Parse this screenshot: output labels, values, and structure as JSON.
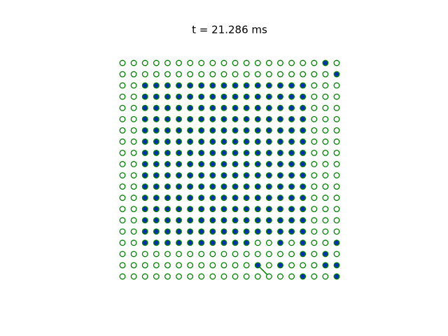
{
  "title": "t = 21.286 ms",
  "grid": [
    [
      0,
      0,
      0,
      0,
      0,
      0,
      0,
      0,
      0,
      0,
      0,
      0,
      0,
      0,
      0,
      0,
      0,
      0,
      1,
      0
    ],
    [
      0,
      0,
      0,
      0,
      0,
      0,
      0,
      0,
      0,
      0,
      0,
      0,
      0,
      0,
      0,
      0,
      0,
      0,
      0,
      1
    ],
    [
      0,
      0,
      1,
      1,
      1,
      1,
      1,
      1,
      1,
      1,
      1,
      1,
      1,
      1,
      1,
      1,
      1,
      0,
      0,
      0
    ],
    [
      0,
      0,
      1,
      1,
      1,
      1,
      1,
      1,
      1,
      1,
      1,
      1,
      1,
      1,
      1,
      1,
      1,
      0,
      0,
      0
    ],
    [
      0,
      0,
      1,
      1,
      1,
      1,
      1,
      1,
      1,
      1,
      1,
      1,
      1,
      1,
      1,
      1,
      1,
      0,
      0,
      0
    ],
    [
      0,
      0,
      1,
      1,
      1,
      1,
      1,
      1,
      1,
      1,
      1,
      1,
      1,
      1,
      1,
      1,
      1,
      0,
      0,
      0
    ],
    [
      0,
      0,
      1,
      1,
      1,
      1,
      1,
      1,
      1,
      1,
      1,
      1,
      1,
      1,
      1,
      1,
      1,
      0,
      0,
      0
    ],
    [
      0,
      0,
      1,
      1,
      1,
      1,
      1,
      1,
      1,
      1,
      1,
      1,
      1,
      1,
      1,
      1,
      1,
      0,
      0,
      0
    ],
    [
      0,
      0,
      1,
      1,
      1,
      1,
      1,
      1,
      1,
      1,
      1,
      1,
      1,
      1,
      1,
      1,
      1,
      0,
      0,
      0
    ],
    [
      0,
      0,
      1,
      1,
      1,
      1,
      1,
      1,
      1,
      1,
      1,
      1,
      1,
      1,
      1,
      1,
      1,
      0,
      0,
      0
    ],
    [
      0,
      0,
      1,
      1,
      1,
      1,
      1,
      1,
      1,
      1,
      1,
      1,
      1,
      1,
      1,
      1,
      1,
      0,
      0,
      0
    ],
    [
      0,
      0,
      1,
      1,
      1,
      1,
      1,
      1,
      1,
      1,
      1,
      1,
      1,
      1,
      1,
      1,
      1,
      0,
      0,
      0
    ],
    [
      0,
      0,
      1,
      1,
      1,
      1,
      1,
      1,
      1,
      1,
      1,
      1,
      1,
      1,
      1,
      1,
      1,
      0,
      0,
      0
    ],
    [
      0,
      0,
      1,
      1,
      1,
      1,
      1,
      1,
      1,
      1,
      1,
      1,
      1,
      1,
      1,
      1,
      1,
      0,
      0,
      0
    ],
    [
      0,
      0,
      1,
      1,
      1,
      1,
      1,
      1,
      1,
      1,
      1,
      1,
      1,
      1,
      1,
      1,
      1,
      0,
      0,
      0
    ],
    [
      0,
      0,
      1,
      1,
      1,
      1,
      1,
      1,
      1,
      1,
      1,
      1,
      1,
      1,
      1,
      1,
      1,
      0,
      0,
      0
    ],
    [
      0,
      0,
      1,
      1,
      1,
      1,
      1,
      1,
      1,
      1,
      1,
      1,
      0,
      0,
      1,
      0,
      1,
      0,
      0,
      1
    ],
    [
      0,
      0,
      0,
      0,
      0,
      0,
      0,
      0,
      0,
      0,
      0,
      0,
      0,
      0,
      0,
      0,
      1,
      0,
      1,
      0
    ],
    [
      0,
      0,
      0,
      0,
      0,
      0,
      0,
      0,
      0,
      0,
      0,
      0,
      1,
      0,
      1,
      0,
      0,
      0,
      1,
      1
    ],
    [
      0,
      0,
      0,
      0,
      0,
      0,
      0,
      0,
      0,
      0,
      0,
      0,
      0,
      0,
      0,
      0,
      1,
      0,
      0,
      1
    ]
  ],
  "links": [
    {
      "from": [
        18,
        12
      ],
      "to": [
        19,
        13
      ]
    }
  ],
  "filled_color": "#0033aa",
  "edge_color": "#008000"
}
